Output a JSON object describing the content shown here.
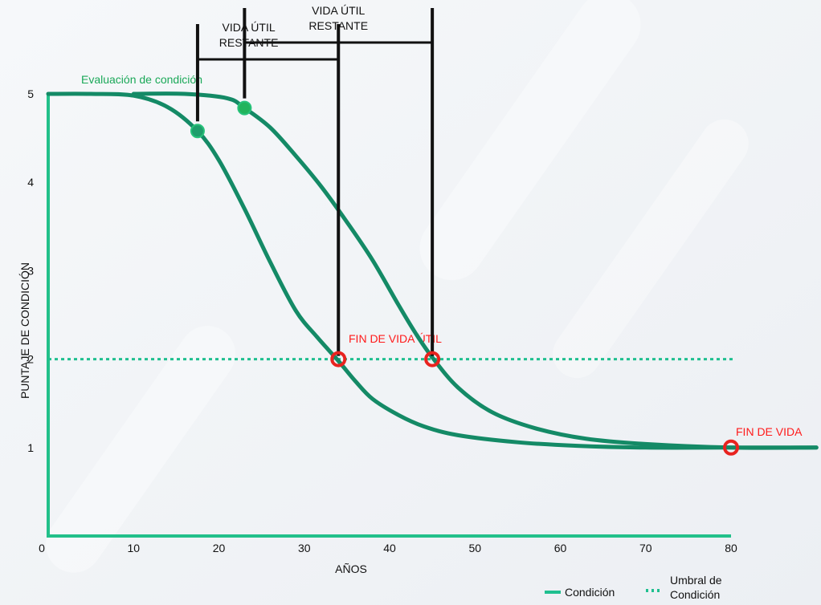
{
  "chart_data": {
    "type": "line",
    "xlabel": "AÑOS",
    "ylabel": "PUNTAJE DE CONDICIÓN",
    "xlim": [
      0,
      90
    ],
    "ylim": [
      0,
      5
    ],
    "x_ticks": [
      0,
      10,
      20,
      30,
      40,
      50,
      60,
      70,
      80
    ],
    "y_ticks": [
      0,
      1,
      2,
      3,
      4,
      5
    ],
    "grid": false,
    "threshold": 2,
    "series": [
      {
        "name": "Condición",
        "x": [
          0,
          5,
          10,
          14,
          17.5,
          20,
          23,
          26,
          29,
          31.5,
          34,
          36,
          38,
          41,
          44,
          48,
          55,
          62,
          70,
          80,
          90
        ],
        "y": [
          5.0,
          5.0,
          4.98,
          4.85,
          4.58,
          4.25,
          3.7,
          3.1,
          2.55,
          2.25,
          1.98,
          1.75,
          1.55,
          1.37,
          1.24,
          1.14,
          1.06,
          1.02,
          1.0,
          1.0,
          1.0
        ]
      },
      {
        "name": "",
        "x": [
          10,
          16,
          21,
          23,
          26,
          29,
          32,
          35,
          38,
          41,
          43,
          45,
          48,
          52,
          57,
          63,
          70,
          80,
          90
        ],
        "y": [
          5.0,
          5.0,
          4.95,
          4.84,
          4.62,
          4.3,
          3.95,
          3.55,
          3.12,
          2.62,
          2.3,
          2.02,
          1.68,
          1.4,
          1.22,
          1.1,
          1.04,
          1.0,
          1.0
        ]
      }
    ],
    "condition_assessments": [
      {
        "x": 17.5,
        "y": 4.58,
        "color": "#1e9e6b"
      },
      {
        "x": 23,
        "y": 4.84,
        "color": "#22b35c"
      }
    ],
    "end_of_life_markers": [
      {
        "x": 34,
        "y": 2.0
      },
      {
        "x": 45,
        "y": 2.0
      },
      {
        "x": 80,
        "y": 1.0
      }
    ],
    "remaining_life_brackets": [
      {
        "x_start": 17.5,
        "x_end": 34,
        "label_line1": "VIDA ÚTIL",
        "label_line2": "RESTANTE"
      },
      {
        "x_start": 23,
        "x_end": 45,
        "label_line1": "VIDA ÚTIL",
        "label_line2": "RESTANTE"
      }
    ],
    "annotations": {
      "condition_assessment": "Evaluación de condición",
      "end_useful_life": "FIN DE VIDA ÚTIL",
      "end_of_life": "FIN DE VIDA"
    },
    "legend": {
      "placement": "bottom-right",
      "condition": "Condición",
      "threshold_line1": "Umbral de",
      "threshold_line2": "Condición"
    },
    "colors": {
      "line": "#148a66",
      "axis": "#22c08a",
      "threshold": "#1fbf8f",
      "end_marker": "#e8231f",
      "bracket": "#111111",
      "annotation_green": "#1aa858",
      "annotation_red": "#ff1a1a"
    }
  }
}
